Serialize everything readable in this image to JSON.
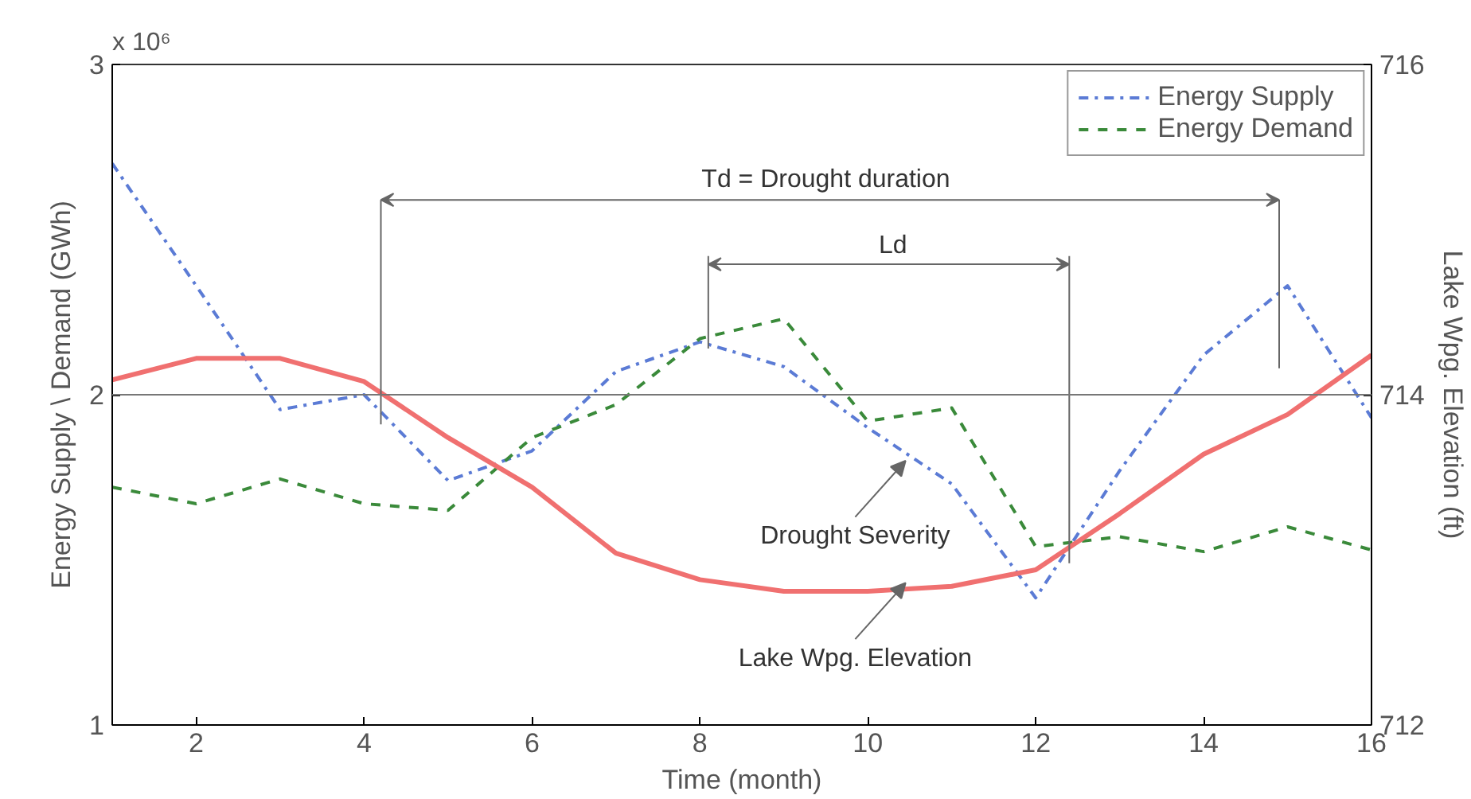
{
  "chart_data": {
    "type": "line",
    "xlabel": "Time (month)",
    "ylabel": "Energy Supply \\ Demand (GWh)",
    "y2label": "Lake Wpg. Elevation (ft)",
    "x": [
      1,
      2,
      3,
      4,
      5,
      6,
      7,
      8,
      9,
      10,
      11,
      12,
      13,
      14,
      15,
      16
    ],
    "series": [
      {
        "name": "Energy Supply",
        "color": "#5b7bd5",
        "line_style": "dashdot",
        "values": [
          2.7,
          2.33,
          1.955,
          2.0,
          1.74,
          1.83,
          2.07,
          2.16,
          2.085,
          1.9,
          1.73,
          1.385,
          1.77,
          2.12,
          2.33,
          1.93
        ]
      },
      {
        "name": "Energy Demand",
        "color": "#3a8a3a",
        "line_style": "dashed",
        "values": [
          1.72,
          1.67,
          1.745,
          1.67,
          1.65,
          1.87,
          1.97,
          2.17,
          2.23,
          1.92,
          1.96,
          1.54,
          1.57,
          1.525,
          1.6,
          1.53
        ]
      },
      {
        "color": "#f07070",
        "line_style": "solid",
        "axis": "y2",
        "values": [
          714.09,
          714.22,
          714.22,
          714.08,
          713.74,
          713.44,
          713.04,
          712.88,
          712.81,
          712.81,
          712.84,
          712.94,
          713.28,
          713.64,
          713.88,
          714.24
        ]
      }
    ],
    "xlim": [
      1,
      16
    ],
    "xticks": [
      2,
      4,
      6,
      8,
      10,
      12,
      14,
      16
    ],
    "ylim": [
      1,
      3
    ],
    "yticks": [
      1,
      2,
      3
    ],
    "y2lim": [
      712,
      716
    ],
    "y2ticks": [
      712,
      714,
      716
    ],
    "ref_lines": [
      {
        "axis": "y",
        "value": 2,
        "color": "#777777"
      }
    ],
    "annotations": [
      "x 10⁶",
      "Td = Drought duration",
      "Ld",
      {
        "text": "Drought Severity",
        "x": 10.45,
        "y": 1.8
      },
      {
        "text": "Lake Wpg. Elevation",
        "x": 10.45,
        "y": 1.43
      }
    ],
    "grid": false,
    "legend": "top right",
    "marker": "none"
  }
}
